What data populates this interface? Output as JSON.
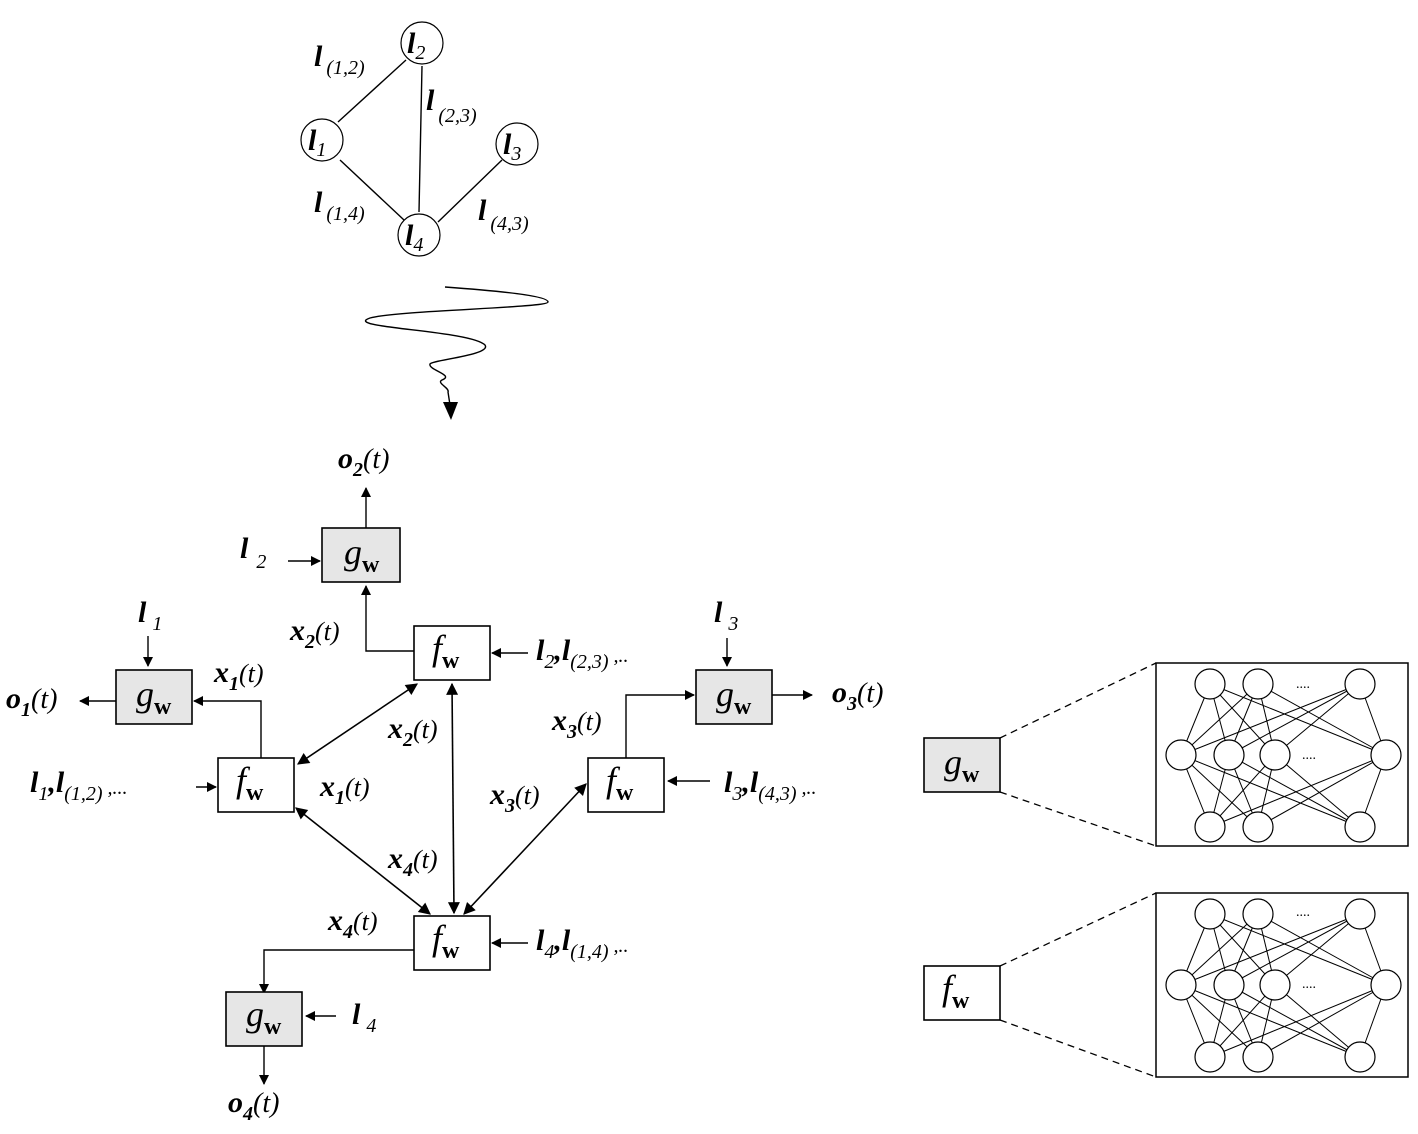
{
  "graph": {
    "nodes": [
      {
        "base": "l",
        "sub": "2"
      },
      {
        "base": "l",
        "sub": "1"
      },
      {
        "base": "l",
        "sub": "3"
      },
      {
        "base": "l",
        "sub": "4"
      }
    ],
    "edges": [
      {
        "base": "l",
        "sub": "(1,2)"
      },
      {
        "base": "l",
        "sub": "(2,3)"
      },
      {
        "base": "l",
        "sub": "(1,4)"
      },
      {
        "base": "l",
        "sub": "(4,3)"
      }
    ]
  },
  "functions": {
    "g": {
      "letter": "g",
      "sub": "w"
    },
    "f": {
      "letter": "f",
      "sub": "w"
    }
  },
  "outputs": [
    {
      "base": "o",
      "sub": "2",
      "arg": "(t)"
    },
    {
      "base": "o",
      "sub": "1",
      "arg": "(t)"
    },
    {
      "base": "o",
      "sub": "3",
      "arg": "(t)"
    },
    {
      "base": "o",
      "sub": "4",
      "arg": "(t)"
    }
  ],
  "states": {
    "x1": {
      "base": "x",
      "sub": "1",
      "arg": "(t)"
    },
    "x2": {
      "base": "x",
      "sub": "2",
      "arg": "(t)"
    },
    "x3": {
      "base": "x",
      "sub": "3",
      "arg": "(t)"
    },
    "x4": {
      "base": "x",
      "sub": "4",
      "arg": "(t)"
    }
  },
  "inputs": {
    "l1": {
      "base": "l",
      "sub": "1"
    },
    "l2": {
      "base": "l",
      "sub": "2"
    },
    "l3": {
      "base": "l",
      "sub": "3"
    },
    "l4": {
      "base": "l",
      "sub": "4"
    },
    "f2_in": {
      "a": "l",
      "a_sub": "2",
      "sep": ",",
      "b": "l",
      "b_sub": "(2,3)",
      "tail": " ,.."
    },
    "f1_in": {
      "a": "l",
      "a_sub": "1",
      "sep": ",",
      "b": "l",
      "b_sub": "(1,2)",
      "tail": " ,..."
    },
    "f3_in": {
      "a": "l",
      "a_sub": "3",
      "sep": ",",
      "b": "l",
      "b_sub": "(4,3)",
      "tail": " ,.."
    },
    "f4_in": {
      "a": "l",
      "a_sub": "4",
      "sep": ",",
      "b": "l",
      "b_sub": "(1,4)",
      "tail": " ,.."
    }
  },
  "nn_ellipsis": "...."
}
